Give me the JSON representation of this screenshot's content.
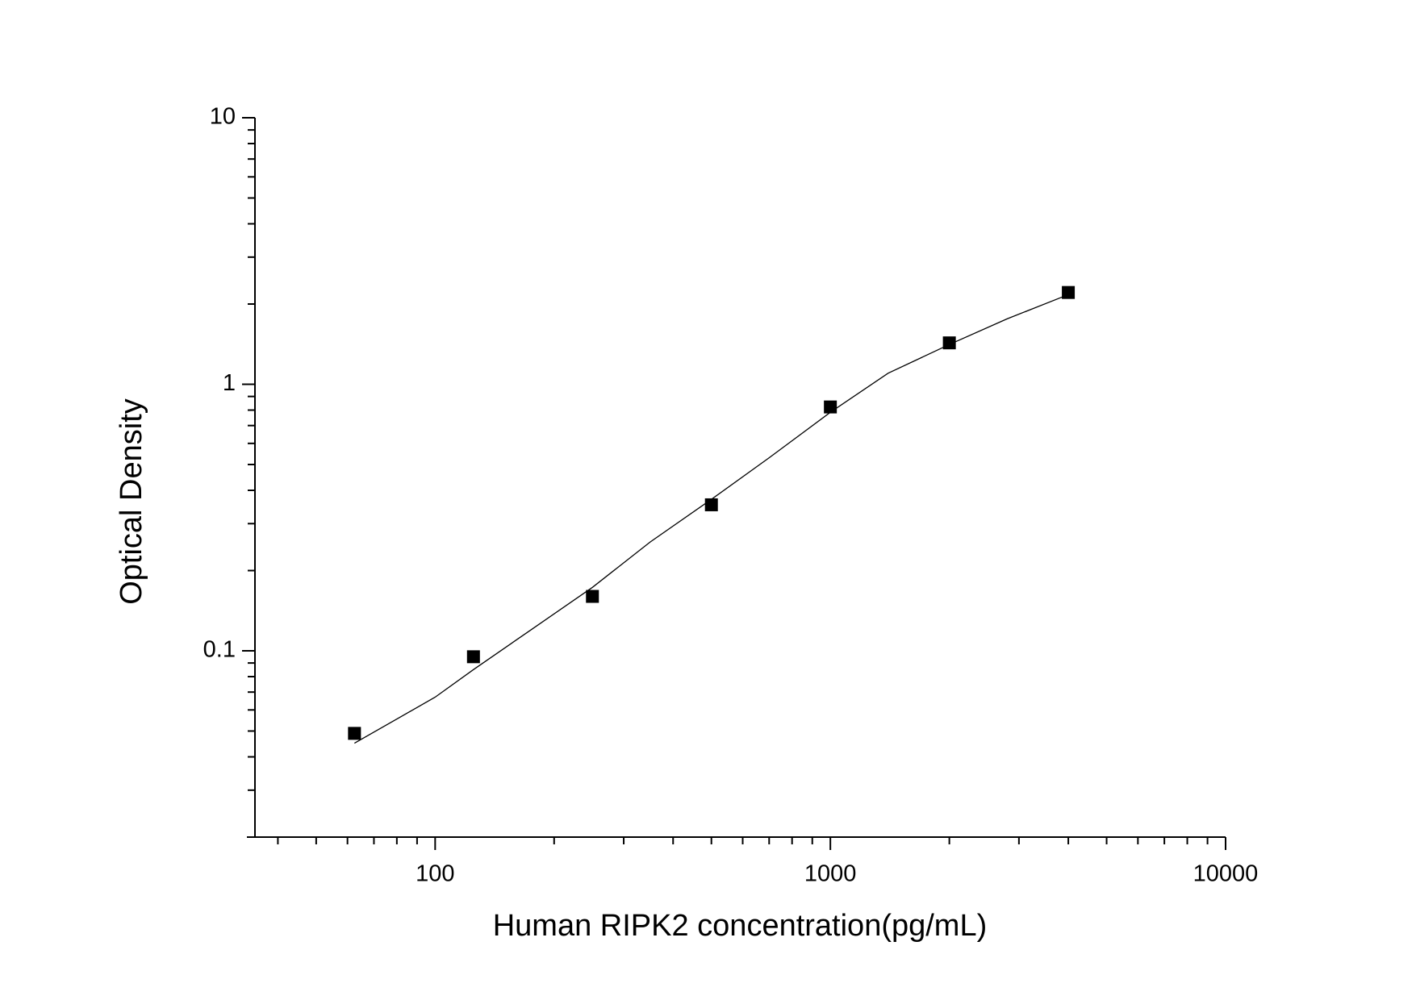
{
  "chart_data": {
    "type": "scatter",
    "xlabel": "Human RIPK2 concentration(pg/mL)",
    "ylabel": "Optical Density",
    "xscale": "log",
    "yscale": "log",
    "xlim": [
      35,
      10000
    ],
    "ylim": [
      0.02,
      10
    ],
    "xticks": [
      100,
      1000,
      10000
    ],
    "yticks": [
      0.1,
      1,
      10
    ],
    "xminorticks": [
      40,
      50,
      60,
      70,
      80,
      90,
      200,
      300,
      400,
      500,
      600,
      700,
      800,
      900,
      2000,
      3000,
      4000,
      5000,
      6000,
      7000,
      8000,
      9000
    ],
    "yminorticks": [
      0.03,
      0.04,
      0.05,
      0.06,
      0.07,
      0.08,
      0.09,
      0.2,
      0.3,
      0.4,
      0.5,
      0.6,
      0.7,
      0.8,
      0.9,
      2,
      3,
      4,
      5,
      6,
      7,
      8,
      9
    ],
    "series": [
      {
        "mode": "markers",
        "color": "#000000",
        "x": [
          62.5,
          125,
          250,
          500,
          1000,
          2000,
          4000
        ],
        "values": [
          0.049,
          0.095,
          0.16,
          0.353,
          0.822,
          1.43,
          2.21
        ]
      },
      {
        "mode": "line",
        "color": "#000000",
        "x": [
          62.5,
          100,
          125,
          175,
          250,
          350,
          500,
          700,
          1000,
          1400,
          2000,
          2800,
          4000
        ],
        "values": [
          0.045,
          0.067,
          0.085,
          0.12,
          0.173,
          0.256,
          0.37,
          0.53,
          0.785,
          1.1,
          1.41,
          1.76,
          2.17
        ]
      }
    ]
  }
}
